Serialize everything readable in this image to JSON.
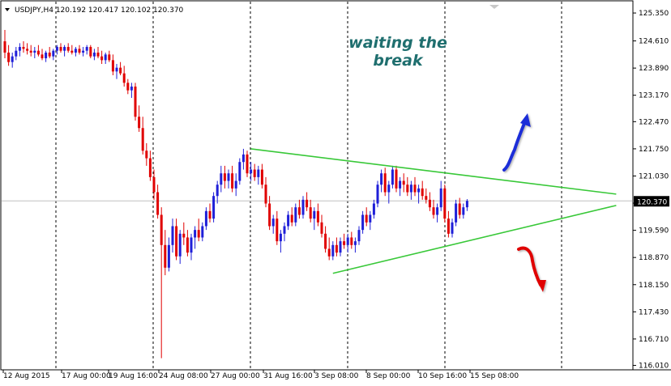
{
  "window": {
    "symbol_header": "USDJPY,H4 120.192 120.417 120.102 120.370"
  },
  "colors": {
    "bull": "#1f1fd8",
    "bear": "#e00000",
    "triangle": "#38c838",
    "arrow_up": "#1a2fd8",
    "arrow_down": "#e00000",
    "annotation": "#1f6f6f",
    "grid": "#000000",
    "price_line": "#c0c0c0"
  },
  "annotation": {
    "line1": "waiting the",
    "line2": "break"
  },
  "current_price_label": "120.370",
  "chart_data": {
    "type": "candlestick",
    "symbol": "USDJPY",
    "timeframe": "H4",
    "last": {
      "open": 120.192,
      "high": 120.417,
      "low": 120.102,
      "close": 120.37
    },
    "y_ticks": [
      "125.350",
      "124.610",
      "123.890",
      "123.170",
      "122.470",
      "121.750",
      "121.030",
      "120.310",
      "119.590",
      "118.870",
      "118.150",
      "117.430",
      "116.710",
      "116.010"
    ],
    "ylim": [
      116.0,
      125.48
    ],
    "x_ticks": [
      "12 Aug 2015",
      "17 Aug 00:00",
      "19 Aug 16:00",
      "24 Aug 08:00",
      "27 Aug 00:00",
      "31 Aug 16:00",
      "3 Sep 08:00",
      "8 Sep 00:00",
      "10 Sep 16:00",
      "15 Sep 08:00"
    ],
    "xlim": [
      0,
      170
    ],
    "candles": [
      [
        124.6,
        124.9,
        124.15,
        124.3
      ],
      [
        124.3,
        124.5,
        123.95,
        124.05
      ],
      [
        124.05,
        124.3,
        123.9,
        124.2
      ],
      [
        124.2,
        124.45,
        124.1,
        124.35
      ],
      [
        124.35,
        124.55,
        124.2,
        124.45
      ],
      [
        124.45,
        124.6,
        124.3,
        124.4
      ],
      [
        124.4,
        124.55,
        124.25,
        124.35
      ],
      [
        124.35,
        124.5,
        124.2,
        124.3
      ],
      [
        124.3,
        124.45,
        124.15,
        124.35
      ],
      [
        124.35,
        124.5,
        124.2,
        124.25
      ],
      [
        124.25,
        124.4,
        124.1,
        124.15
      ],
      [
        124.15,
        124.35,
        124.05,
        124.3
      ],
      [
        124.3,
        124.45,
        124.15,
        124.2
      ],
      [
        124.2,
        124.4,
        124.1,
        124.35
      ],
      [
        124.35,
        124.5,
        124.25,
        124.45
      ],
      [
        124.45,
        124.55,
        124.3,
        124.35
      ],
      [
        124.35,
        124.5,
        124.2,
        124.45
      ],
      [
        124.45,
        124.55,
        124.3,
        124.35
      ],
      [
        124.35,
        124.5,
        124.25,
        124.3
      ],
      [
        124.3,
        124.45,
        124.2,
        124.4
      ],
      [
        124.4,
        124.5,
        124.25,
        124.3
      ],
      [
        124.3,
        124.45,
        124.2,
        124.35
      ],
      [
        124.35,
        124.5,
        124.25,
        124.45
      ],
      [
        124.45,
        124.5,
        124.15,
        124.2
      ],
      [
        124.2,
        124.4,
        124.1,
        124.3
      ],
      [
        124.3,
        124.45,
        124.15,
        124.2
      ],
      [
        124.2,
        124.35,
        124.0,
        124.1
      ],
      [
        124.1,
        124.3,
        124.0,
        124.25
      ],
      [
        124.25,
        124.35,
        124.05,
        124.1
      ],
      [
        124.1,
        124.25,
        123.7,
        123.8
      ],
      [
        123.8,
        124.0,
        123.6,
        123.9
      ],
      [
        123.9,
        124.05,
        123.7,
        123.75
      ],
      [
        123.75,
        123.95,
        123.4,
        123.5
      ],
      [
        123.5,
        123.6,
        123.2,
        123.3
      ],
      [
        123.3,
        123.5,
        123.1,
        123.4
      ],
      [
        123.4,
        123.5,
        122.5,
        122.6
      ],
      [
        122.6,
        122.9,
        122.2,
        122.3
      ],
      [
        122.3,
        122.6,
        121.6,
        121.7
      ],
      [
        121.7,
        121.9,
        121.3,
        121.5
      ],
      [
        121.5,
        121.7,
        120.9,
        121.0
      ],
      [
        121.0,
        121.2,
        120.4,
        120.6
      ],
      [
        120.6,
        120.8,
        119.9,
        120.0
      ],
      [
        120.0,
        120.2,
        116.2,
        119.2
      ],
      [
        119.2,
        119.6,
        118.4,
        118.6
      ],
      [
        118.6,
        119.4,
        118.5,
        119.2
      ],
      [
        119.2,
        119.9,
        119.0,
        119.7
      ],
      [
        119.7,
        119.9,
        118.8,
        118.9
      ],
      [
        118.9,
        119.6,
        118.7,
        119.5
      ],
      [
        119.5,
        119.8,
        119.2,
        119.4
      ],
      [
        119.4,
        119.6,
        118.9,
        119.0
      ],
      [
        119.0,
        119.5,
        118.8,
        119.4
      ],
      [
        119.4,
        119.7,
        119.1,
        119.6
      ],
      [
        119.6,
        119.9,
        119.3,
        119.4
      ],
      [
        119.4,
        119.8,
        119.3,
        119.7
      ],
      [
        119.7,
        120.2,
        119.6,
        120.1
      ],
      [
        120.1,
        120.3,
        119.8,
        119.9
      ],
      [
        119.9,
        120.6,
        119.8,
        120.5
      ],
      [
        120.5,
        120.9,
        120.3,
        120.8
      ],
      [
        120.8,
        121.3,
        120.6,
        121.1
      ],
      [
        121.1,
        121.3,
        120.7,
        120.9
      ],
      [
        120.9,
        121.2,
        120.7,
        121.1
      ],
      [
        121.1,
        121.3,
        120.6,
        120.7
      ],
      [
        120.7,
        121.1,
        120.5,
        120.9
      ],
      [
        120.9,
        121.5,
        120.8,
        121.4
      ],
      [
        121.4,
        121.75,
        121.2,
        121.6
      ],
      [
        121.6,
        121.7,
        121.0,
        121.1
      ],
      [
        121.1,
        121.4,
        120.9,
        121.2
      ],
      [
        121.2,
        121.35,
        120.9,
        121.0
      ],
      [
        121.0,
        121.3,
        120.8,
        121.2
      ],
      [
        121.2,
        121.35,
        120.7,
        120.8
      ],
      [
        120.8,
        121.0,
        120.2,
        120.3
      ],
      [
        120.3,
        120.5,
        119.6,
        119.7
      ],
      [
        119.7,
        120.0,
        119.5,
        119.9
      ],
      [
        119.9,
        120.1,
        119.2,
        119.3
      ],
      [
        119.3,
        119.6,
        119.0,
        119.5
      ],
      [
        119.5,
        119.8,
        119.3,
        119.7
      ],
      [
        119.7,
        120.1,
        119.6,
        120.0
      ],
      [
        120.0,
        120.2,
        119.7,
        119.8
      ],
      [
        119.8,
        120.3,
        119.7,
        120.2
      ],
      [
        120.2,
        120.4,
        119.9,
        120.0
      ],
      [
        120.0,
        120.5,
        119.9,
        120.4
      ],
      [
        120.4,
        120.6,
        120.1,
        120.2
      ],
      [
        120.2,
        120.4,
        119.8,
        119.9
      ],
      [
        119.9,
        120.2,
        119.6,
        120.1
      ],
      [
        120.1,
        120.3,
        119.7,
        119.8
      ],
      [
        119.8,
        120.0,
        119.4,
        119.5
      ],
      [
        119.5,
        119.7,
        119.0,
        119.1
      ],
      [
        119.1,
        119.4,
        118.8,
        118.9
      ],
      [
        118.9,
        119.3,
        118.8,
        119.2
      ],
      [
        119.2,
        119.4,
        118.9,
        119.0
      ],
      [
        119.0,
        119.4,
        118.9,
        119.3
      ],
      [
        119.3,
        119.5,
        119.1,
        119.2
      ],
      [
        119.2,
        119.5,
        119.0,
        119.4
      ],
      [
        119.4,
        119.55,
        119.1,
        119.2
      ],
      [
        119.2,
        119.4,
        119.0,
        119.3
      ],
      [
        119.3,
        119.7,
        119.2,
        119.6
      ],
      [
        119.6,
        120.1,
        119.5,
        120.0
      ],
      [
        120.0,
        120.2,
        119.7,
        119.8
      ],
      [
        119.8,
        120.1,
        119.6,
        120.0
      ],
      [
        120.0,
        120.4,
        119.9,
        120.3
      ],
      [
        120.3,
        120.9,
        120.2,
        120.8
      ],
      [
        120.8,
        121.2,
        120.6,
        121.1
      ],
      [
        121.1,
        121.25,
        120.5,
        120.6
      ],
      [
        120.6,
        120.9,
        120.3,
        120.8
      ],
      [
        120.8,
        121.3,
        120.7,
        121.2
      ],
      [
        121.2,
        121.3,
        120.6,
        120.7
      ],
      [
        120.7,
        121.0,
        120.5,
        120.9
      ],
      [
        120.9,
        121.1,
        120.6,
        120.8
      ],
      [
        120.8,
        121.0,
        120.5,
        120.6
      ],
      [
        120.6,
        120.9,
        120.4,
        120.8
      ],
      [
        120.8,
        121.0,
        120.5,
        120.6
      ],
      [
        120.6,
        120.8,
        120.3,
        120.7
      ],
      [
        120.7,
        120.9,
        120.4,
        120.5
      ],
      [
        120.5,
        120.7,
        120.3,
        120.4
      ],
      [
        120.4,
        120.6,
        120.1,
        120.2
      ],
      [
        120.2,
        120.4,
        119.9,
        120.0
      ],
      [
        120.0,
        120.3,
        119.8,
        120.2
      ],
      [
        120.2,
        120.9,
        120.1,
        120.7
      ],
      [
        120.7,
        120.8,
        119.8,
        119.9
      ],
      [
        119.9,
        120.1,
        119.4,
        119.5
      ],
      [
        119.5,
        119.9,
        119.4,
        119.8
      ],
      [
        119.8,
        120.4,
        119.7,
        120.3
      ],
      [
        120.3,
        120.45,
        119.9,
        120.0
      ],
      [
        120.0,
        120.3,
        119.9,
        120.2
      ],
      [
        120.2,
        120.417,
        120.102,
        120.37
      ]
    ],
    "trendlines": [
      {
        "name": "upper",
        "x1": 66,
        "y1": 121.75,
        "x2": 164,
        "y2": 120.55
      },
      {
        "name": "lower",
        "x1": 88,
        "y1": 118.45,
        "x2": 164,
        "y2": 120.25
      }
    ]
  }
}
